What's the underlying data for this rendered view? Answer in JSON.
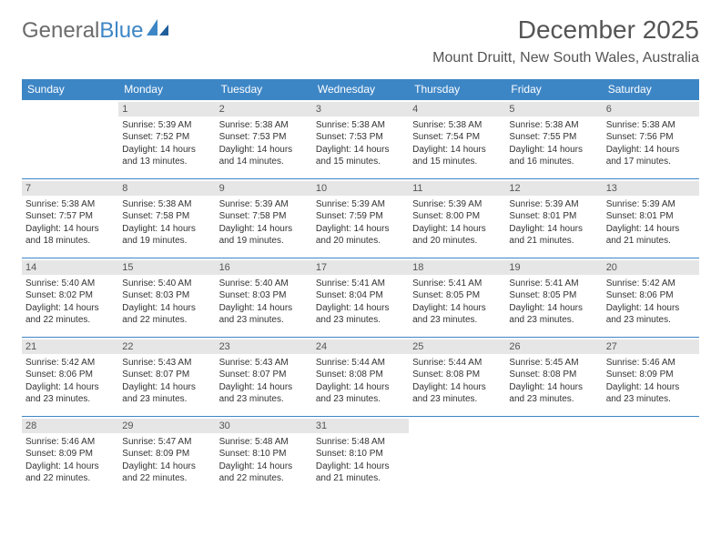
{
  "logo": {
    "part1": "General",
    "part2": "Blue"
  },
  "title": "December 2025",
  "location": "Mount Druitt, New South Wales, Australia",
  "colors": {
    "header_bg": "#3d86c6",
    "daynum_bg": "#e6e6e6",
    "border": "#3d86c6"
  },
  "headers": [
    "Sunday",
    "Monday",
    "Tuesday",
    "Wednesday",
    "Thursday",
    "Friday",
    "Saturday"
  ],
  "weeks": [
    [
      {
        "n": "",
        "sr": "",
        "ss": "",
        "dl": ""
      },
      {
        "n": "1",
        "sr": "5:39 AM",
        "ss": "7:52 PM",
        "dl": "14 hours and 13 minutes."
      },
      {
        "n": "2",
        "sr": "5:38 AM",
        "ss": "7:53 PM",
        "dl": "14 hours and 14 minutes."
      },
      {
        "n": "3",
        "sr": "5:38 AM",
        "ss": "7:53 PM",
        "dl": "14 hours and 15 minutes."
      },
      {
        "n": "4",
        "sr": "5:38 AM",
        "ss": "7:54 PM",
        "dl": "14 hours and 15 minutes."
      },
      {
        "n": "5",
        "sr": "5:38 AM",
        "ss": "7:55 PM",
        "dl": "14 hours and 16 minutes."
      },
      {
        "n": "6",
        "sr": "5:38 AM",
        "ss": "7:56 PM",
        "dl": "14 hours and 17 minutes."
      }
    ],
    [
      {
        "n": "7",
        "sr": "5:38 AM",
        "ss": "7:57 PM",
        "dl": "14 hours and 18 minutes."
      },
      {
        "n": "8",
        "sr": "5:38 AM",
        "ss": "7:58 PM",
        "dl": "14 hours and 19 minutes."
      },
      {
        "n": "9",
        "sr": "5:39 AM",
        "ss": "7:58 PM",
        "dl": "14 hours and 19 minutes."
      },
      {
        "n": "10",
        "sr": "5:39 AM",
        "ss": "7:59 PM",
        "dl": "14 hours and 20 minutes."
      },
      {
        "n": "11",
        "sr": "5:39 AM",
        "ss": "8:00 PM",
        "dl": "14 hours and 20 minutes."
      },
      {
        "n": "12",
        "sr": "5:39 AM",
        "ss": "8:01 PM",
        "dl": "14 hours and 21 minutes."
      },
      {
        "n": "13",
        "sr": "5:39 AM",
        "ss": "8:01 PM",
        "dl": "14 hours and 21 minutes."
      }
    ],
    [
      {
        "n": "14",
        "sr": "5:40 AM",
        "ss": "8:02 PM",
        "dl": "14 hours and 22 minutes."
      },
      {
        "n": "15",
        "sr": "5:40 AM",
        "ss": "8:03 PM",
        "dl": "14 hours and 22 minutes."
      },
      {
        "n": "16",
        "sr": "5:40 AM",
        "ss": "8:03 PM",
        "dl": "14 hours and 23 minutes."
      },
      {
        "n": "17",
        "sr": "5:41 AM",
        "ss": "8:04 PM",
        "dl": "14 hours and 23 minutes."
      },
      {
        "n": "18",
        "sr": "5:41 AM",
        "ss": "8:05 PM",
        "dl": "14 hours and 23 minutes."
      },
      {
        "n": "19",
        "sr": "5:41 AM",
        "ss": "8:05 PM",
        "dl": "14 hours and 23 minutes."
      },
      {
        "n": "20",
        "sr": "5:42 AM",
        "ss": "8:06 PM",
        "dl": "14 hours and 23 minutes."
      }
    ],
    [
      {
        "n": "21",
        "sr": "5:42 AM",
        "ss": "8:06 PM",
        "dl": "14 hours and 23 minutes."
      },
      {
        "n": "22",
        "sr": "5:43 AM",
        "ss": "8:07 PM",
        "dl": "14 hours and 23 minutes."
      },
      {
        "n": "23",
        "sr": "5:43 AM",
        "ss": "8:07 PM",
        "dl": "14 hours and 23 minutes."
      },
      {
        "n": "24",
        "sr": "5:44 AM",
        "ss": "8:08 PM",
        "dl": "14 hours and 23 minutes."
      },
      {
        "n": "25",
        "sr": "5:44 AM",
        "ss": "8:08 PM",
        "dl": "14 hours and 23 minutes."
      },
      {
        "n": "26",
        "sr": "5:45 AM",
        "ss": "8:08 PM",
        "dl": "14 hours and 23 minutes."
      },
      {
        "n": "27",
        "sr": "5:46 AM",
        "ss": "8:09 PM",
        "dl": "14 hours and 23 minutes."
      }
    ],
    [
      {
        "n": "28",
        "sr": "5:46 AM",
        "ss": "8:09 PM",
        "dl": "14 hours and 22 minutes."
      },
      {
        "n": "29",
        "sr": "5:47 AM",
        "ss": "8:09 PM",
        "dl": "14 hours and 22 minutes."
      },
      {
        "n": "30",
        "sr": "5:48 AM",
        "ss": "8:10 PM",
        "dl": "14 hours and 22 minutes."
      },
      {
        "n": "31",
        "sr": "5:48 AM",
        "ss": "8:10 PM",
        "dl": "14 hours and 21 minutes."
      },
      {
        "n": "",
        "sr": "",
        "ss": "",
        "dl": ""
      },
      {
        "n": "",
        "sr": "",
        "ss": "",
        "dl": ""
      },
      {
        "n": "",
        "sr": "",
        "ss": "",
        "dl": ""
      }
    ]
  ]
}
